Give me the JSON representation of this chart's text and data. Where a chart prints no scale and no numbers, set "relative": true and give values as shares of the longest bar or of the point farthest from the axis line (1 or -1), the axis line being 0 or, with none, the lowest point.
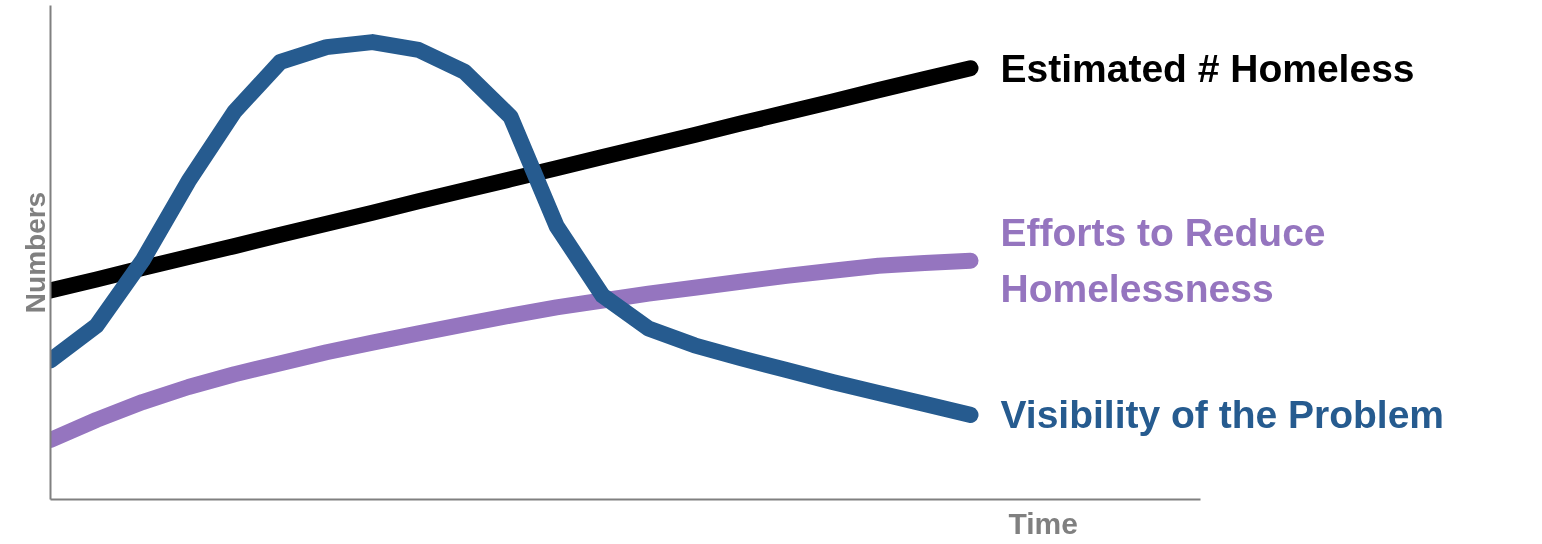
{
  "chart_data": {
    "type": "line",
    "relative": true,
    "xlabel": "Time",
    "ylabel": "Numbers",
    "legend": false,
    "grid": false,
    "marker": "none",
    "line_style": "solid",
    "categories": [
      null,
      null,
      null,
      null,
      null,
      null,
      null,
      null,
      null,
      null,
      null,
      null,
      null,
      null,
      null,
      null,
      null,
      null,
      null,
      null,
      null,
      null,
      null,
      null,
      null,
      null
    ],
    "series": [
      {
        "name": "Estimated # Homeless",
        "color": "#000000",
        "values": [
          0.457,
          0.481,
          0.506,
          0.53,
          0.554,
          0.579,
          0.603,
          0.627,
          0.652,
          0.676,
          0.7,
          0.724,
          0.749,
          0.773,
          0.797,
          0.822,
          0.846,
          0.87,
          0.895,
          0.919,
          0.943,
          null,
          null,
          null,
          null,
          null
        ]
      },
      {
        "name": "Efforts to Reduce Homelessness",
        "color": "#9575bf",
        "values": [
          0.13,
          0.174,
          0.213,
          0.246,
          0.274,
          0.298,
          0.322,
          0.343,
          0.363,
          0.383,
          0.402,
          0.42,
          0.435,
          0.45,
          0.463,
          0.476,
          0.489,
          0.5,
          0.511,
          0.517,
          0.522,
          null,
          null,
          null,
          null,
          null
        ]
      },
      {
        "name": "Visibility of the Problem",
        "color": "#265b8f",
        "values": [
          0.304,
          0.38,
          0.522,
          0.696,
          0.848,
          0.957,
          0.989,
          1,
          0.983,
          0.935,
          0.837,
          0.598,
          0.446,
          0.374,
          0.337,
          0.309,
          0.283,
          0.257,
          0.233,
          0.209,
          0.185,
          null,
          null,
          null,
          null,
          null
        ]
      }
    ]
  }
}
